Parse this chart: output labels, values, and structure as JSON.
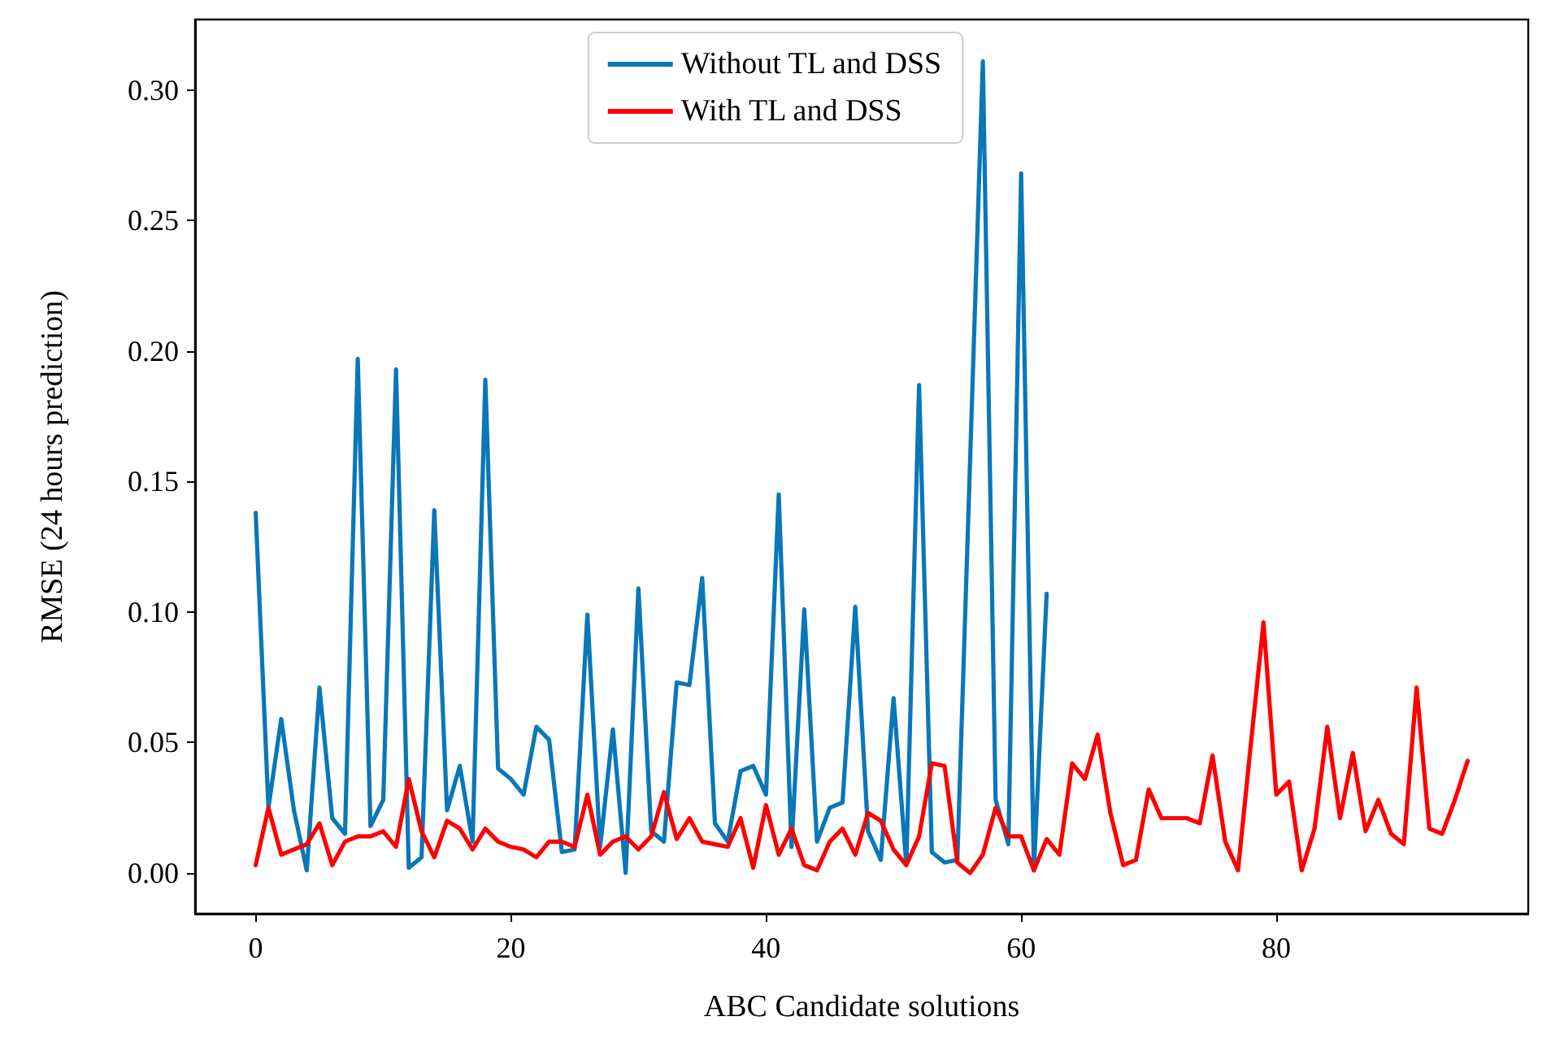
{
  "chart_data": {
    "type": "line",
    "xlabel": "ABC Candidate solutions",
    "ylabel": "RMSE (24 hours prediction)",
    "x": [
      0,
      1,
      2,
      3,
      4,
      5,
      6,
      7,
      8,
      9,
      10,
      11,
      12,
      13,
      14,
      15,
      16,
      17,
      18,
      19,
      20,
      21,
      22,
      23,
      24,
      25,
      26,
      27,
      28,
      29,
      30,
      31,
      32,
      33,
      34,
      35,
      36,
      37,
      38,
      39,
      40,
      41,
      42,
      43,
      44,
      45,
      46,
      47,
      48,
      49,
      50,
      51,
      52,
      53,
      54,
      55,
      56,
      57,
      58,
      59,
      60,
      61,
      62,
      63,
      64,
      65,
      66,
      67,
      68,
      69,
      70,
      71,
      72,
      73,
      74,
      75,
      76,
      77,
      78,
      79,
      80,
      81,
      82,
      83,
      84,
      85,
      86,
      87,
      88,
      89,
      90,
      91,
      92,
      93,
      94,
      95
    ],
    "series": [
      {
        "name": "Without TL and DSS",
        "color": "#0a77b8",
        "x": [
          0,
          1,
          2,
          3,
          4,
          5,
          6,
          7,
          8,
          9,
          10,
          11,
          12,
          13,
          14,
          15,
          16,
          17,
          18,
          19,
          20,
          21,
          22,
          23,
          24,
          25,
          26,
          27,
          28,
          29,
          30,
          31,
          32,
          33,
          34,
          35,
          36,
          37,
          38,
          39,
          40,
          41,
          42,
          43,
          44,
          45,
          46,
          47,
          48,
          49,
          50,
          51,
          52,
          53,
          54,
          55,
          56,
          57,
          58,
          59,
          60,
          61,
          62
        ],
        "values": [
          0.138,
          0.025,
          0.059,
          0.024,
          0.001,
          0.071,
          0.021,
          0.015,
          0.197,
          0.018,
          0.028,
          0.193,
          0.002,
          0.006,
          0.139,
          0.024,
          0.041,
          0.012,
          0.189,
          0.04,
          0.036,
          0.03,
          0.056,
          0.051,
          0.008,
          0.009,
          0.099,
          0.01,
          0.055,
          0.0,
          0.109,
          0.016,
          0.012,
          0.073,
          0.072,
          0.113,
          0.019,
          0.012,
          0.039,
          0.041,
          0.03,
          0.145,
          0.01,
          0.101,
          0.012,
          0.025,
          0.027,
          0.102,
          0.016,
          0.005,
          0.067,
          0.003,
          0.187,
          0.008,
          0.004,
          0.005,
          0.158,
          0.311,
          0.028,
          0.011,
          0.268,
          0.001,
          0.107
        ]
      },
      {
        "name": "With TL and DSS",
        "color": "#ff0000",
        "values": [
          0.003,
          0.025,
          0.007,
          0.009,
          0.011,
          0.019,
          0.003,
          0.012,
          0.014,
          0.014,
          0.016,
          0.01,
          0.036,
          0.016,
          0.006,
          0.02,
          0.017,
          0.009,
          0.017,
          0.012,
          0.01,
          0.009,
          0.006,
          0.012,
          0.012,
          0.01,
          0.03,
          0.007,
          0.012,
          0.014,
          0.009,
          0.014,
          0.031,
          0.013,
          0.021,
          0.012,
          0.011,
          0.01,
          0.021,
          0.002,
          0.026,
          0.007,
          0.017,
          0.003,
          0.001,
          0.012,
          0.017,
          0.007,
          0.023,
          0.02,
          0.009,
          0.003,
          0.014,
          0.042,
          0.041,
          0.004,
          0.0,
          0.007,
          0.025,
          0.014,
          0.014,
          0.001,
          0.013,
          0.007,
          0.042,
          0.036,
          0.053,
          0.023,
          0.003,
          0.005,
          0.032,
          0.021,
          0.021,
          0.021,
          0.019,
          0.045,
          0.012,
          0.001,
          0.049,
          0.096,
          0.03,
          0.035,
          0.001,
          0.017,
          0.056,
          0.021,
          0.046,
          0.016,
          0.028,
          0.015,
          0.011,
          0.071,
          0.017,
          0.015,
          0.028,
          0.043
        ]
      }
    ],
    "xlim": [
      -4.75,
      99.75
    ],
    "xticks": [
      0,
      20,
      40,
      60,
      80
    ],
    "ylim": [
      -0.0156,
      0.327
    ],
    "yticks": [
      {
        "value": 0,
        "label": "0.00"
      },
      {
        "value": 0.05,
        "label": "0.05"
      },
      {
        "value": 0.1,
        "label": "0.10"
      },
      {
        "value": 0.15,
        "label": "0.15"
      },
      {
        "value": 0.2,
        "label": "0.20"
      },
      {
        "value": 0.25,
        "label": "0.25"
      },
      {
        "value": 0.3,
        "label": "0.30"
      }
    ],
    "grid": false,
    "legend": "top",
    "line_style": "solid",
    "marker": "none"
  }
}
